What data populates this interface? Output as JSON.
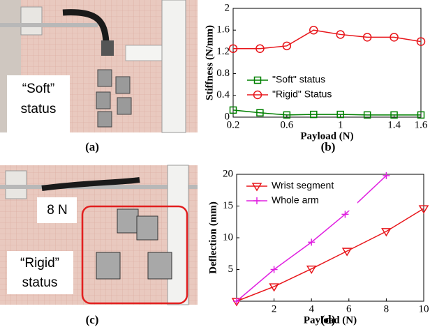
{
  "chart_data": [
    {
      "type": "line",
      "xlabel": "Payload (N)",
      "ylabel": "Stiffness (N/mm)",
      "xlim": [
        0.2,
        1.6
      ],
      "xticks": [
        0.2,
        0.6,
        1,
        1.4,
        1.6
      ],
      "ylim": [
        0,
        2
      ],
      "yticks": [
        0,
        0.4,
        0.8,
        1.2,
        1.6,
        2
      ],
      "legend": "lower right",
      "series": [
        {
          "name": "\"Soft\" status",
          "color": "#008000",
          "marker": "square",
          "x": [
            0.2,
            0.4,
            0.6,
            0.8,
            1.0,
            1.2,
            1.4,
            1.6
          ],
          "values": [
            0.13,
            0.08,
            0.04,
            0.05,
            0.05,
            0.04,
            0.04,
            0.04
          ]
        },
        {
          "name": "\"Rigid\" Status",
          "color": "#e8161b",
          "marker": "circle",
          "x": [
            0.2,
            0.4,
            0.6,
            0.8,
            1.0,
            1.2,
            1.4,
            1.6
          ],
          "values": [
            1.26,
            1.26,
            1.31,
            1.6,
            1.52,
            1.47,
            1.47,
            1.39
          ]
        }
      ]
    },
    {
      "type": "line",
      "xlabel": "Payload (N)",
      "ylabel": "Deflection (mm)",
      "xlim": [
        0,
        10
      ],
      "xticks": [
        2,
        4,
        6,
        8,
        10
      ],
      "ylim": [
        0,
        20
      ],
      "yticks": [
        5,
        10,
        15,
        20
      ],
      "legend": "upper left",
      "series": [
        {
          "name": "Wrist segment",
          "color": "#e8161b",
          "marker": "triangle-down",
          "x": [
            0,
            2,
            4,
            5.9,
            8,
            10
          ],
          "values": [
            0,
            2.3,
            5.1,
            7.9,
            11,
            14.6
          ]
        },
        {
          "name": "Whole arm",
          "color": "#e020e0",
          "marker": "plus",
          "x": [
            0,
            2,
            4,
            5.8,
            8
          ],
          "values": [
            0,
            5,
            9.3,
            13.7,
            19.8
          ]
        }
      ]
    }
  ],
  "panel_labels": [
    "(a)",
    "(b)",
    "(c)",
    "(d)"
  ],
  "photos": [
    {
      "caption_lines": [
        "“Soft”",
        "status"
      ]
    },
    {
      "tag": "8 N",
      "caption_lines": [
        "“Rigid”",
        "status"
      ]
    }
  ]
}
